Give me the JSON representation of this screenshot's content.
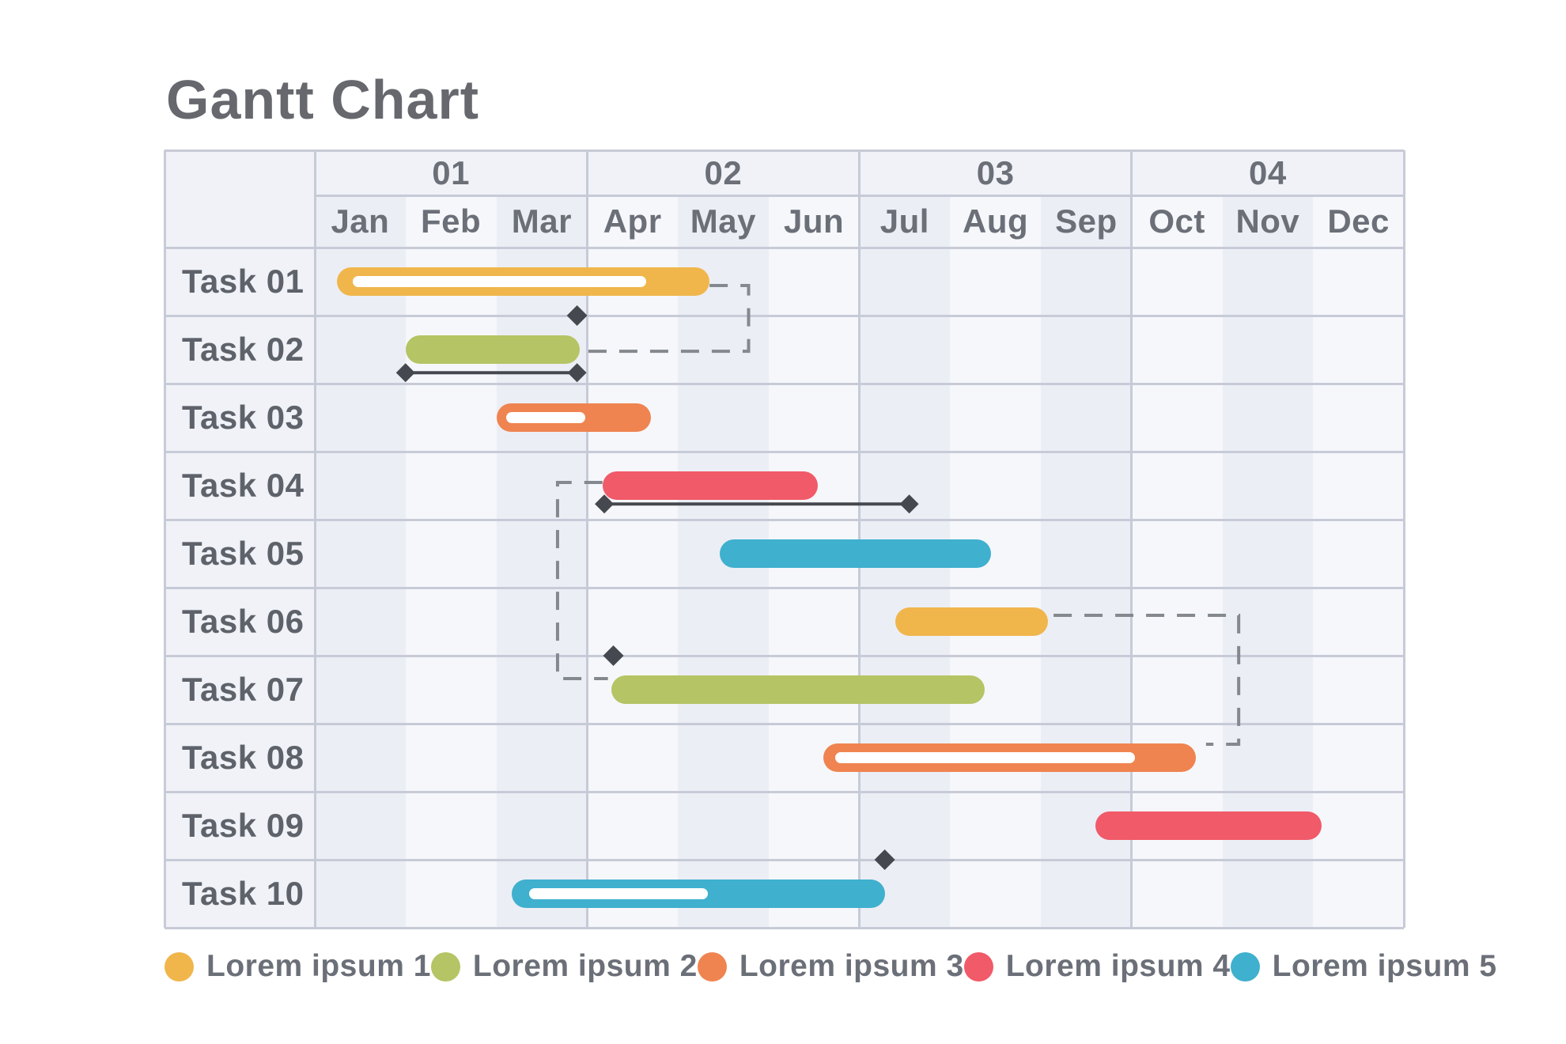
{
  "title": "Gantt Chart",
  "palette": {
    "bars": {
      "yellow": "#F0B64C",
      "green": "#B5C464",
      "orange": "#EF8450",
      "red": "#F15A68",
      "blue": "#3FB0CE"
    },
    "ui": {
      "page_bg": "#FFFFFF",
      "grid_base": "#F0F2F7",
      "stripe_odd_month": "#ECEEF5",
      "stripe_even_month": "#F6F7FB",
      "grid_line": "#C7CBD7",
      "header_text": "#6B6F78",
      "task_text": "#5E626A",
      "title_text": "#66686E",
      "annotation_dark": "#45484F",
      "connector_gray": "#84888F",
      "progress_line": "#FFFFFF"
    }
  },
  "chart_data": {
    "type": "gantt",
    "title": "Gantt Chart",
    "quarters": [
      "01",
      "02",
      "03",
      "04"
    ],
    "months": [
      "Jan",
      "Feb",
      "Mar",
      "Apr",
      "May",
      "Jun",
      "Jul",
      "Aug",
      "Sep",
      "Oct",
      "Nov",
      "Dec"
    ],
    "axis_note": "start/end in month units; 0 = start of Jan, 12 = end of Dec",
    "tasks": [
      {
        "label": "Task 01",
        "color": "yellow",
        "start": 0.24,
        "end": 4.35,
        "progress_start": 0.42,
        "progress_end": 3.65
      },
      {
        "label": "Task 02",
        "color": "green",
        "start": 1.0,
        "end": 2.92
      },
      {
        "label": "Task 03",
        "color": "orange",
        "start": 2.0,
        "end": 3.7,
        "progress_start": 2.11,
        "progress_end": 2.98
      },
      {
        "label": "Task 04",
        "color": "red",
        "start": 3.17,
        "end": 5.54
      },
      {
        "label": "Task 05",
        "color": "blue",
        "start": 4.46,
        "end": 7.45
      },
      {
        "label": "Task 06",
        "color": "yellow",
        "start": 6.4,
        "end": 8.08
      },
      {
        "label": "Task 07",
        "color": "green",
        "start": 3.27,
        "end": 7.38
      },
      {
        "label": "Task 08",
        "color": "orange",
        "start": 5.6,
        "end": 9.71,
        "progress_start": 5.73,
        "progress_end": 9.04
      },
      {
        "label": "Task 09",
        "color": "red",
        "start": 8.6,
        "end": 11.09
      },
      {
        "label": "Task 10",
        "color": "blue",
        "start": 2.17,
        "end": 6.28,
        "progress_start": 2.36,
        "progress_end": 4.33
      }
    ],
    "milestones": [
      {
        "month": 2.89,
        "row_line": 1
      },
      {
        "month": 3.29,
        "row_line": 6
      },
      {
        "month": 6.28,
        "row_line": 9
      }
    ],
    "range_lines": [
      {
        "row": 1,
        "from": 1.0,
        "to": 2.89,
        "y_frac": 0.84
      },
      {
        "row": 3,
        "from": 3.19,
        "to": 6.55,
        "y_frac": 0.77
      }
    ],
    "connectors": [
      {
        "points": [
          [
            4.35,
            0.558
          ],
          [
            4.78,
            0.558
          ],
          [
            4.78,
            1.524
          ],
          [
            2.92,
            1.524
          ]
        ]
      },
      {
        "points": [
          [
            3.17,
            3.453
          ],
          [
            2.675,
            3.453
          ],
          [
            2.675,
            6.337
          ],
          [
            3.23,
            6.337
          ]
        ]
      },
      {
        "points": [
          [
            8.14,
            5.407
          ],
          [
            10.18,
            5.407
          ],
          [
            10.18,
            7.302
          ],
          [
            9.82,
            7.302
          ]
        ]
      }
    ]
  },
  "legend": {
    "items": [
      {
        "label": "Lorem ipsum 1",
        "color": "yellow"
      },
      {
        "label": "Lorem ipsum 2",
        "color": "green"
      },
      {
        "label": "Lorem ipsum 3",
        "color": "orange"
      },
      {
        "label": "Lorem ipsum 4",
        "color": "red"
      },
      {
        "label": "Lorem ipsum 5",
        "color": "blue"
      }
    ]
  }
}
